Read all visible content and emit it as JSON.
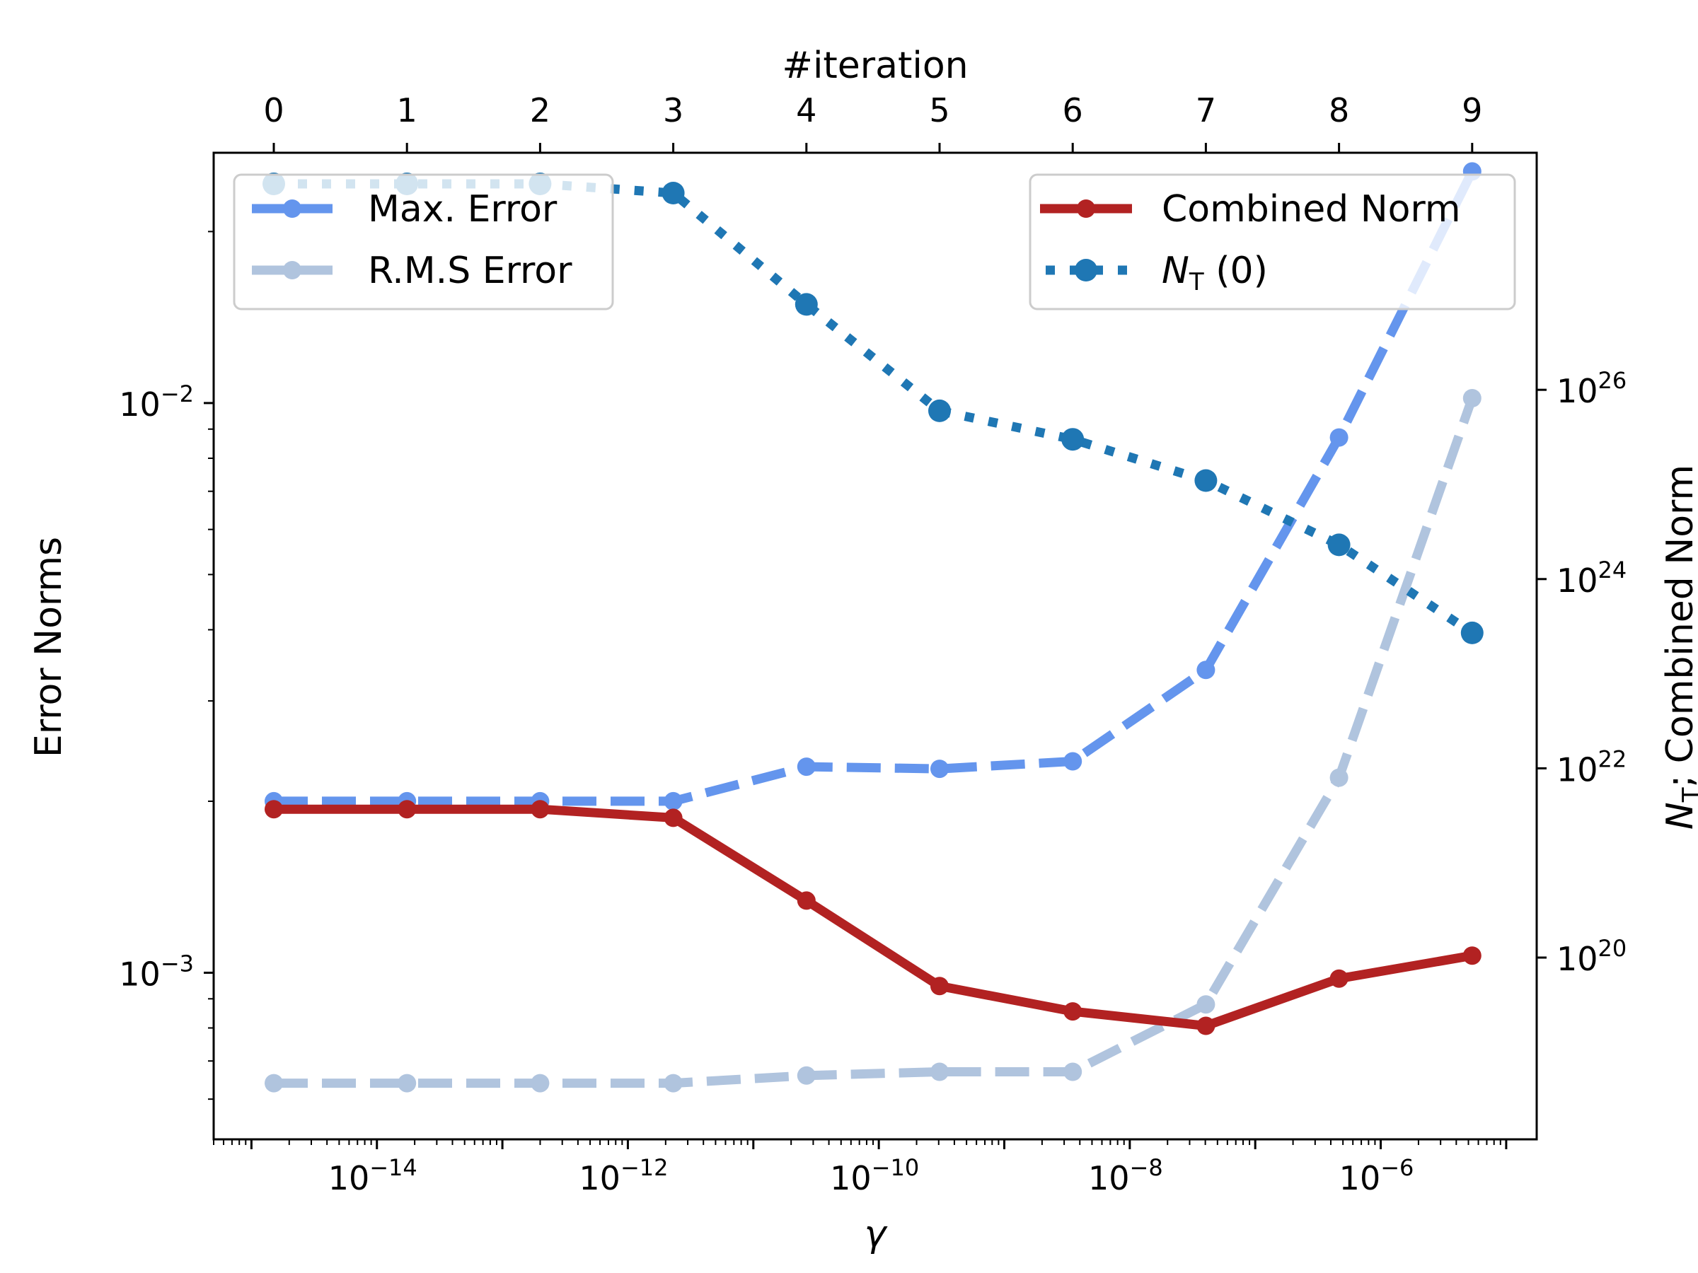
{
  "chart_data": {
    "type": "line",
    "x_bottom": {
      "label": "γ",
      "scale": "log",
      "lim": [
        5e-16,
        1.75e-05
      ],
      "tick_values": [
        1e-14,
        1e-12,
        1e-10,
        1e-08,
        1e-06
      ],
      "tick_labels": [
        {
          "base": "10",
          "exp": "−14"
        },
        {
          "base": "10",
          "exp": "−12"
        },
        {
          "base": "10",
          "exp": "−10"
        },
        {
          "base": "10",
          "exp": "−8"
        },
        {
          "base": "10",
          "exp": "−6"
        }
      ]
    },
    "x_top": {
      "label": "#iteration",
      "ticks": [
        "0",
        "1",
        "2",
        "3",
        "4",
        "5",
        "6",
        "7",
        "8",
        "9"
      ]
    },
    "y_left": {
      "label": "Error Norms",
      "scale": "log",
      "lim": [
        0.00051,
        0.0275
      ],
      "tick_values": [
        0.001,
        0.01
      ],
      "tick_labels": [
        {
          "base": "10",
          "exp": "−3"
        },
        {
          "base": "10",
          "exp": "−2"
        }
      ]
    },
    "y_right": {
      "label_prefix": "N",
      "label_sub": "T",
      "label_suffix": "; Combined Norm",
      "scale": "log",
      "lim": [
        1.2e+18,
        3.2e+28
      ],
      "tick_values": [
        1e+20,
        1e+22,
        1e+24,
        1e+26
      ],
      "tick_labels": [
        {
          "base": "10",
          "exp": "20"
        },
        {
          "base": "10",
          "exp": "22"
        },
        {
          "base": "10",
          "exp": "24"
        },
        {
          "base": "10",
          "exp": "26"
        }
      ]
    },
    "iterations": [
      0,
      1,
      2,
      3,
      4,
      5,
      6,
      7,
      8,
      9
    ],
    "series": [
      {
        "name": "Max. Error",
        "axis": "left",
        "color": "#6495ED",
        "style": "dashed",
        "values": [
          0.002,
          0.002,
          0.002,
          0.002,
          0.0023,
          0.00228,
          0.00235,
          0.0034,
          0.0087,
          0.0255
        ]
      },
      {
        "name": "R.M.S Error",
        "axis": "left",
        "color": "#B0C4DE",
        "style": "dashed",
        "values": [
          0.00064,
          0.00064,
          0.00064,
          0.00064,
          0.00066,
          0.00067,
          0.00067,
          0.00088,
          0.0022,
          0.0102
        ]
      },
      {
        "name": "Combined Norm",
        "axis": "right",
        "color": "#B22222",
        "style": "solid",
        "values": [
          3.7e+21,
          3.7e+21,
          3.7e+21,
          3e+21,
          4e+20,
          5e+19,
          2.7e+19,
          1.9e+19,
          6e+19,
          1.05e+20
        ]
      },
      {
        "name_prefix": "N",
        "name_sub": "T",
        "name_suffix": " (0)",
        "axis": "right",
        "color": "#1F77B4",
        "style": "dotted",
        "values": [
          1.5e+28,
          1.5e+28,
          1.5e+28,
          1.2e+28,
          8e+26,
          6e+25,
          3e+25,
          1.1e+25,
          2.3e+24,
          2.7e+23
        ]
      }
    ],
    "legends": [
      "upper-left",
      "upper-right"
    ],
    "grid": false
  }
}
